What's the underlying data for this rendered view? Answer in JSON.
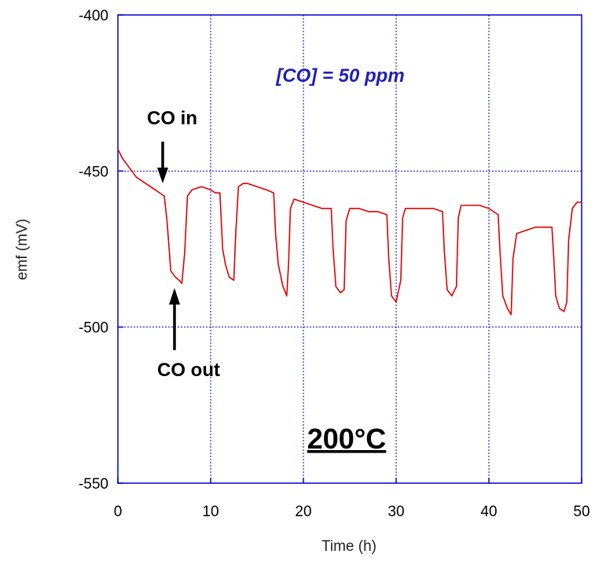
{
  "chart_data": {
    "type": "line",
    "xlabel": "Time (h)",
    "ylabel": "emf (mV)",
    "xlim": [
      0,
      50
    ],
    "ylim": [
      -550,
      -400
    ],
    "x_ticks": [
      "0",
      "10",
      "20",
      "30",
      "40",
      "50"
    ],
    "y_ticks": [
      "-400",
      "-450",
      "-500",
      "-550"
    ],
    "grid": true,
    "colors": {
      "series": "#e00000",
      "grid": "#0000cc",
      "concentration_text": "#1f1fb4"
    },
    "annotations": {
      "concentration": "[CO] = 50 ppm",
      "co_in": "CO in",
      "co_out": "CO out",
      "temperature": "200°C"
    },
    "series": [
      {
        "x": [
          0,
          0.5,
          1,
          1.5,
          2,
          3,
          4,
          4.5,
          5,
          5.3,
          5.7,
          6.2,
          6.6,
          6.9,
          7.2,
          7.5,
          8,
          9,
          10,
          10.5,
          11,
          11.3,
          11.6,
          12,
          12.5,
          12.7,
          13,
          13.5,
          14,
          15,
          16,
          16.8,
          17,
          17.3,
          17.8,
          18.2,
          18.4,
          18.6,
          19,
          20,
          21,
          22,
          23,
          23.2,
          23.5,
          24,
          24.4,
          24.6,
          25,
          26,
          27,
          28,
          29,
          29.2,
          29.5,
          30,
          30.5,
          30.7,
          31,
          32,
          33,
          34,
          35,
          35.2,
          35.5,
          36,
          36.5,
          36.7,
          37,
          38,
          39,
          40,
          40.5,
          41,
          41.2,
          41.5,
          42,
          42.4,
          42.6,
          43,
          44,
          45,
          46,
          46.8,
          47,
          47.2,
          47.6,
          48.1,
          48.4,
          48.6,
          49,
          49.5,
          50
        ],
        "y": [
          -443,
          -446,
          -448,
          -450,
          -452,
          -454,
          -456,
          -457,
          -458,
          -466,
          -482,
          -484,
          -485,
          -486,
          -476,
          -458,
          -456,
          -455,
          -456,
          -457,
          -457,
          -475,
          -480,
          -484,
          -485,
          -470,
          -455,
          -454,
          -454,
          -455,
          -456,
          -457,
          -470,
          -480,
          -487,
          -490,
          -480,
          -462,
          -459,
          -460,
          -461,
          -462,
          -462,
          -475,
          -487,
          -489,
          -488,
          -466,
          -462,
          -462,
          -463,
          -463,
          -464,
          -478,
          -490,
          -492,
          -485,
          -465,
          -462,
          -462,
          -462,
          -462,
          -463,
          -476,
          -488,
          -490,
          -487,
          -465,
          -461,
          -461,
          -461,
          -462,
          -463,
          -464,
          -476,
          -490,
          -494,
          -496,
          -478,
          -470,
          -469,
          -468,
          -468,
          -468,
          -478,
          -490,
          -494,
          -495,
          -492,
          -472,
          -462,
          -460,
          -460
        ]
      }
    ]
  }
}
